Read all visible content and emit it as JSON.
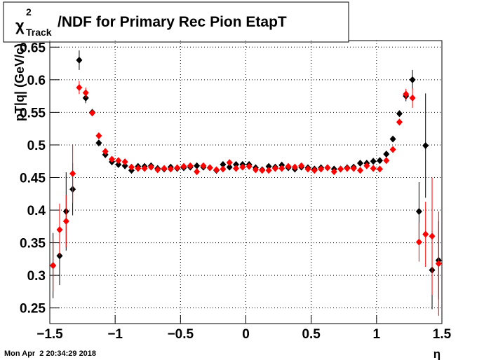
{
  "chart_data": {
    "type": "scatter",
    "title": {
      "symbol": "χ",
      "sup": "2",
      "sub": "Track",
      "text": "/NDF for Primary Rec Pion EtapT"
    },
    "x_label": "η",
    "y_label": "pT|q| (GeV/c)",
    "timestamp": "Mon Apr  2 20:34:29 2018",
    "x": [
      -1.475,
      -1.425,
      -1.375,
      -1.325,
      -1.275,
      -1.225,
      -1.175,
      -1.125,
      -1.075,
      -1.025,
      -0.975,
      -0.925,
      -0.875,
      -0.825,
      -0.775,
      -0.725,
      -0.675,
      -0.625,
      -0.575,
      -0.525,
      -0.475,
      -0.425,
      -0.375,
      -0.325,
      -0.275,
      -0.225,
      -0.175,
      -0.125,
      -0.075,
      -0.025,
      0.025,
      0.075,
      0.125,
      0.175,
      0.225,
      0.275,
      0.325,
      0.375,
      0.425,
      0.475,
      0.525,
      0.575,
      0.625,
      0.675,
      0.725,
      0.775,
      0.825,
      0.875,
      0.925,
      0.975,
      1.025,
      1.075,
      1.125,
      1.175,
      1.225,
      1.275,
      1.325,
      1.375,
      1.425,
      1.475
    ],
    "series": [
      {
        "color": "#000000",
        "values": [
          0.315,
          0.33,
          0.398,
          0.432,
          0.63,
          0.572,
          0.55,
          0.503,
          0.485,
          0.474,
          0.47,
          0.468,
          0.461,
          0.467,
          0.467,
          0.468,
          0.464,
          0.463,
          0.466,
          0.464,
          0.465,
          0.466,
          0.468,
          0.466,
          0.465,
          0.461,
          0.47,
          0.466,
          0.47,
          0.47,
          0.47,
          0.465,
          0.462,
          0.467,
          0.466,
          0.469,
          0.465,
          0.463,
          0.466,
          0.465,
          0.463,
          0.465,
          0.465,
          0.463,
          0.463,
          0.465,
          0.466,
          0.472,
          0.472,
          0.475,
          0.476,
          0.486,
          0.509,
          0.548,
          0.575,
          0.6,
          0.398,
          0.499,
          0.308,
          0.323
        ],
        "errors": [
          0.05,
          0.045,
          0.06,
          0.04,
          0.015,
          0.008,
          0.005,
          0.003,
          0.003,
          0.003,
          0.003,
          0.003,
          0.003,
          0.003,
          0.003,
          0.003,
          0.003,
          0.003,
          0.003,
          0.003,
          0.003,
          0.003,
          0.003,
          0.003,
          0.003,
          0.003,
          0.003,
          0.003,
          0.003,
          0.003,
          0.003,
          0.003,
          0.003,
          0.003,
          0.003,
          0.003,
          0.003,
          0.003,
          0.003,
          0.003,
          0.003,
          0.003,
          0.003,
          0.003,
          0.003,
          0.003,
          0.003,
          0.003,
          0.003,
          0.003,
          0.003,
          0.003,
          0.003,
          0.005,
          0.008,
          0.015,
          0.045,
          0.08,
          0.06,
          0.06
        ]
      },
      {
        "color": "#ff0000",
        "values": [
          0.315,
          0.37,
          0.383,
          0.456,
          0.588,
          0.58,
          0.549,
          0.514,
          0.49,
          0.478,
          0.476,
          0.474,
          0.466,
          0.464,
          0.464,
          0.466,
          0.462,
          0.464,
          0.463,
          0.465,
          0.467,
          0.468,
          0.459,
          0.468,
          0.465,
          0.462,
          0.463,
          0.473,
          0.464,
          0.466,
          0.467,
          0.462,
          0.461,
          0.461,
          0.464,
          0.464,
          0.467,
          0.466,
          0.468,
          0.463,
          0.461,
          0.463,
          0.465,
          0.459,
          0.463,
          0.464,
          0.464,
          0.461,
          0.468,
          0.464,
          0.463,
          0.476,
          0.493,
          0.535,
          0.578,
          0.572,
          0.351,
          0.363,
          0.36,
          0.318
        ],
        "errors": [
          0.04,
          0.04,
          0.04,
          0.045,
          0.01,
          0.008,
          0.005,
          0.003,
          0.003,
          0.003,
          0.003,
          0.003,
          0.003,
          0.003,
          0.003,
          0.003,
          0.003,
          0.003,
          0.003,
          0.003,
          0.003,
          0.003,
          0.003,
          0.003,
          0.003,
          0.003,
          0.003,
          0.003,
          0.003,
          0.003,
          0.003,
          0.003,
          0.003,
          0.003,
          0.003,
          0.003,
          0.003,
          0.003,
          0.003,
          0.003,
          0.003,
          0.003,
          0.003,
          0.003,
          0.003,
          0.003,
          0.003,
          0.003,
          0.003,
          0.003,
          0.003,
          0.003,
          0.003,
          0.005,
          0.008,
          0.015,
          0.03,
          0.05,
          0.09,
          0.08
        ]
      }
    ],
    "xlim": [
      -1.5,
      1.5
    ],
    "xticks": [
      {
        "value": -1.5,
        "label": "−1.5"
      },
      {
        "value": -1,
        "label": "−1"
      },
      {
        "value": -0.5,
        "label": "−0.5"
      },
      0,
      0.5,
      1,
      1.5
    ],
    "ylim": [
      0.226,
      0.66
    ],
    "yticks": [
      0.25,
      0.3,
      0.35,
      0.4,
      0.45,
      0.5,
      0.55,
      0.6,
      0.65
    ],
    "grid": true
  }
}
